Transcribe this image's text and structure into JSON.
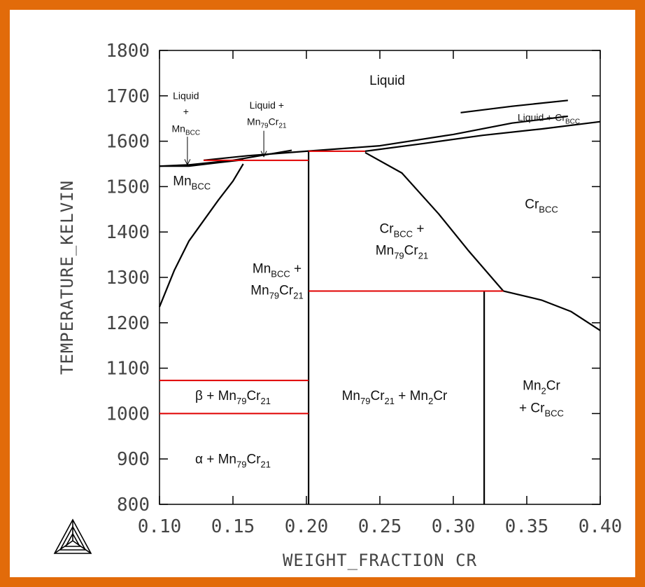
{
  "chart_data": {
    "type": "line",
    "xlabel": "WEIGHT_FRACTION CR",
    "ylabel": "TEMPERATURE_KELVIN",
    "xlim": [
      0.1,
      0.4
    ],
    "ylim": [
      800,
      1800
    ],
    "x_ticks": [
      "0.10",
      "0.15",
      "0.20",
      "0.25",
      "0.30",
      "0.35",
      "0.40"
    ],
    "y_ticks": [
      "800",
      "900",
      "1000",
      "1100",
      "1200",
      "1300",
      "1400",
      "1500",
      "1600",
      "1700",
      "1800"
    ],
    "colors": {
      "boundary": "#000000",
      "invariant": "#e00000",
      "frame": "#e26b0a"
    },
    "boundaries": [
      {
        "points": [
          [
            0.1,
            1545
          ],
          [
            0.12,
            1548
          ],
          [
            0.15,
            1558
          ],
          [
            0.19,
            1580
          ]
        ]
      },
      {
        "points": [
          [
            0.1,
            1545
          ],
          [
            0.12,
            1545
          ],
          [
            0.14,
            1553
          ],
          [
            0.157,
            1559
          ]
        ]
      },
      {
        "points": [
          [
            0.13,
            1558
          ],
          [
            0.16,
            1568
          ],
          [
            0.2,
            1578
          ],
          [
            0.25,
            1590
          ],
          [
            0.3,
            1615
          ],
          [
            0.34,
            1640
          ],
          [
            0.378,
            1655
          ]
        ]
      },
      {
        "points": [
          [
            0.24,
            1578
          ],
          [
            0.28,
            1595
          ],
          [
            0.32,
            1613
          ],
          [
            0.36,
            1627
          ],
          [
            0.4,
            1643
          ]
        ]
      },
      {
        "points": [
          [
            0.305,
            1663
          ],
          [
            0.34,
            1677
          ],
          [
            0.378,
            1690
          ]
        ]
      },
      {
        "points": [
          [
            0.1,
            1235
          ],
          [
            0.11,
            1315
          ],
          [
            0.12,
            1380
          ],
          [
            0.14,
            1470
          ],
          [
            0.15,
            1512
          ],
          [
            0.157,
            1550
          ]
        ]
      },
      {
        "points": [
          [
            0.24,
            1575
          ],
          [
            0.265,
            1530
          ],
          [
            0.29,
            1440
          ],
          [
            0.31,
            1360
          ],
          [
            0.334,
            1270
          ]
        ]
      },
      {
        "points": [
          [
            0.334,
            1270
          ],
          [
            0.36,
            1250
          ],
          [
            0.38,
            1225
          ],
          [
            0.4,
            1183
          ]
        ]
      },
      {
        "points": [
          [
            0.2015,
            800
          ],
          [
            0.2015,
            1578
          ]
        ]
      },
      {
        "points": [
          [
            0.321,
            800
          ],
          [
            0.321,
            1270
          ]
        ]
      }
    ],
    "invariants": [
      {
        "x": [
          0.13,
          0.2015
        ],
        "y": 1558
      },
      {
        "x": [
          0.2015,
          0.24
        ],
        "y": 1578
      },
      {
        "x": [
          0.2015,
          0.334
        ],
        "y": 1270
      },
      {
        "x": [
          0.1,
          0.2015
        ],
        "y": 1073
      },
      {
        "x": [
          0.1,
          0.2015
        ],
        "y": 1000
      }
    ],
    "annotations": [
      {
        "key": "liquid",
        "runs": [
          [
            "Liquid",
            ""
          ]
        ],
        "x": 0.255,
        "y": 1724
      },
      {
        "key": "liquid_mn_bcc_1",
        "runs": [
          [
            "Liquid",
            ""
          ]
        ],
        "x": 0.118,
        "y": 1693
      },
      {
        "key": "liquid_mn_bcc_2",
        "runs": [
          [
            "+",
            ""
          ]
        ],
        "x": 0.118,
        "y": 1658
      },
      {
        "key": "liquid_mn_bcc_3",
        "runs": [
          [
            "Mn",
            ""
          ],
          [
            "BCC",
            "sub"
          ]
        ],
        "x": 0.118,
        "y": 1620
      },
      {
        "key": "liquid_mn79cr21_1",
        "runs": [
          [
            "Liquid +",
            ""
          ]
        ],
        "x": 0.173,
        "y": 1672
      },
      {
        "key": "liquid_mn79cr21_2",
        "runs": [
          [
            "Mn",
            ""
          ],
          [
            "79",
            "sub"
          ],
          [
            "Cr",
            ""
          ],
          [
            "21",
            "sub"
          ]
        ],
        "x": 0.173,
        "y": 1636
      },
      {
        "key": "liquid_cr_bcc",
        "runs": [
          [
            "Liquid + Cr",
            ""
          ],
          [
            "BCC",
            "sub"
          ]
        ],
        "x": 0.365,
        "y": 1645
      },
      {
        "key": "mn_bcc",
        "runs": [
          [
            "Mn",
            ""
          ],
          [
            "BCC",
            "sub"
          ]
        ],
        "x": 0.122,
        "y": 1503
      },
      {
        "key": "cr_bcc",
        "runs": [
          [
            "Cr",
            ""
          ],
          [
            "BCC",
            "sub"
          ]
        ],
        "x": 0.36,
        "y": 1452
      },
      {
        "key": "cr_bcc_mn79cr21_1",
        "runs": [
          [
            "Cr",
            ""
          ],
          [
            "BCC",
            "sub"
          ],
          [
            " +",
            ""
          ]
        ],
        "x": 0.265,
        "y": 1398
      },
      {
        "key": "cr_bcc_mn79cr21_2",
        "runs": [
          [
            "Mn",
            ""
          ],
          [
            "79",
            "sub"
          ],
          [
            "Cr",
            ""
          ],
          [
            "21",
            "sub"
          ]
        ],
        "x": 0.265,
        "y": 1350
      },
      {
        "key": "mn_bcc_mn79cr21_1",
        "runs": [
          [
            "Mn",
            ""
          ],
          [
            "BCC",
            "sub"
          ],
          [
            " +",
            ""
          ]
        ],
        "x": 0.18,
        "y": 1310
      },
      {
        "key": "mn_bcc_mn79cr21_2",
        "runs": [
          [
            "Mn",
            ""
          ],
          [
            "79",
            "sub"
          ],
          [
            "Cr",
            ""
          ],
          [
            "21",
            "sub"
          ]
        ],
        "x": 0.18,
        "y": 1262
      },
      {
        "key": "beta_mn79cr21",
        "runs": [
          [
            "β + Mn",
            ""
          ],
          [
            "79",
            "sub"
          ],
          [
            "Cr",
            ""
          ],
          [
            "21",
            "sub"
          ]
        ],
        "x": 0.15,
        "y": 1030
      },
      {
        "key": "mn79cr21_mn2cr",
        "runs": [
          [
            "Mn",
            ""
          ],
          [
            "79",
            "sub"
          ],
          [
            "Cr",
            ""
          ],
          [
            "21",
            "sub"
          ],
          [
            " + Mn",
            ""
          ],
          [
            "2",
            "sub"
          ],
          [
            "Cr",
            ""
          ]
        ],
        "x": 0.26,
        "y": 1030
      },
      {
        "key": "mn2cr_cr_bcc_1",
        "runs": [
          [
            "Mn",
            ""
          ],
          [
            "2",
            "sub"
          ],
          [
            "Cr",
            ""
          ]
        ],
        "x": 0.36,
        "y": 1052
      },
      {
        "key": "mn2cr_cr_bcc_2",
        "runs": [
          [
            "+ Cr",
            ""
          ],
          [
            "BCC",
            "sub"
          ]
        ],
        "x": 0.36,
        "y": 1003
      },
      {
        "key": "alpha_mn79cr21",
        "runs": [
          [
            "α + Mn",
            ""
          ],
          [
            "79",
            "sub"
          ],
          [
            "Cr",
            ""
          ],
          [
            "21",
            "sub"
          ]
        ],
        "x": 0.15,
        "y": 890
      }
    ],
    "arrows": [
      {
        "from": [
          0.119,
          1610
        ],
        "to": [
          0.119,
          1548
        ]
      },
      {
        "from": [
          0.171,
          1623
        ],
        "to": [
          0.171,
          1566
        ]
      }
    ]
  }
}
